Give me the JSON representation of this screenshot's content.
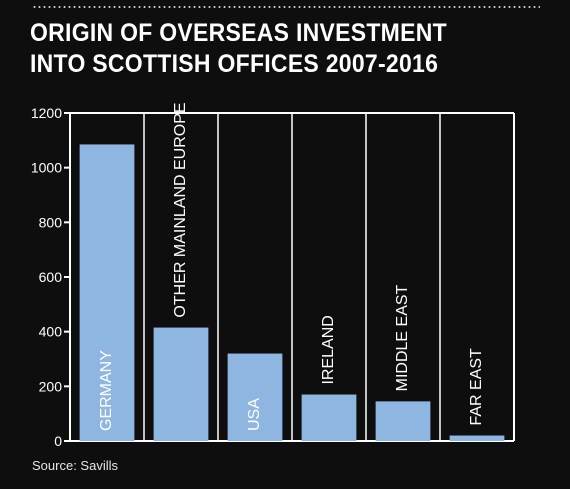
{
  "title_line1": "ORIGIN OF OVERSEAS INVESTMENT",
  "title_line2": "INTO SCOTTISH OFFICES 2007-2016",
  "source": "Source: Savills",
  "colors": {
    "background": "#0e0e0e",
    "bar": "#8fb6e0",
    "axis": "#ffffff",
    "text": "#ffffff"
  },
  "chart_data": {
    "type": "bar",
    "title": "ORIGIN OF OVERSEAS INVESTMENT INTO SCOTTISH OFFICES 2007-2016",
    "categories": [
      "GERMANY",
      "OTHER MAINLAND EUROPE",
      "USA",
      "IRELAND",
      "MIDDLE EAST",
      "FAR EAST"
    ],
    "values": [
      1085,
      415,
      320,
      170,
      145,
      20
    ],
    "ylim": [
      0,
      1200
    ],
    "yticks": [
      0,
      200,
      400,
      600,
      800,
      1000,
      1200
    ],
    "grid": false,
    "legend": "none",
    "category_dividers": true,
    "labels": "vertical, inside or above bars"
  }
}
